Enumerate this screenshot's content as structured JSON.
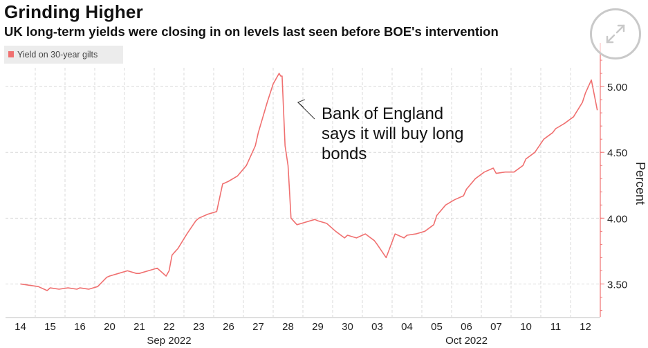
{
  "header": {
    "title": "Grinding Higher",
    "subtitle": "UK long-term yields were closing in on levels last seen before BOE's intervention"
  },
  "chart_data": {
    "type": "line",
    "title": "Grinding Higher",
    "subtitle": "UK long-term yields were closing in on levels last seen before BOE's intervention",
    "ylabel": "Percent",
    "ylim": [
      3.25,
      5.3
    ],
    "yticks": [
      3.5,
      4.0,
      4.5,
      5.0
    ],
    "ytick_labels": [
      "3.50",
      "4.00",
      "4.50",
      "5.00"
    ],
    "y_axis_side": "right",
    "grid": "dashed",
    "legend": {
      "position": "top-left"
    },
    "categories": [
      "14",
      "15",
      "16",
      "20",
      "21",
      "22",
      "23",
      "26",
      "27",
      "28",
      "29",
      "30",
      "03",
      "04",
      "05",
      "06",
      "07",
      "10",
      "11",
      "12"
    ],
    "month_labels": [
      {
        "label": "Sep 2022",
        "at_category": "22"
      },
      {
        "label": "Oct 2022",
        "at_category": "06"
      }
    ],
    "series": [
      {
        "name": "Yield on 30-year gilts",
        "color": "#f07070",
        "x": [
          0,
          0.3,
          0.6,
          0.9,
          1,
          1.3,
          1.6,
          1.9,
          2,
          2.3,
          2.6,
          2.9,
          3,
          3.3,
          3.6,
          3.9,
          4,
          4.3,
          4.6,
          4.9,
          5,
          5.1,
          5.3,
          5.6,
          5.9,
          6,
          6.3,
          6.6,
          6.8,
          6.9,
          7,
          7.3,
          7.6,
          7.9,
          8,
          8.3,
          8.5,
          8.7,
          8.75,
          8.8,
          8.9,
          9.0,
          9.05,
          9.1,
          9.3,
          9.6,
          9.9,
          10,
          10.3,
          10.6,
          10.9,
          11,
          11.3,
          11.6,
          11.9,
          12,
          12.3,
          12.6,
          12.9,
          13,
          13.3,
          13.6,
          13.9,
          14,
          14.3,
          14.6,
          14.9,
          15,
          15.3,
          15.6,
          15.9,
          16,
          16.3,
          16.6,
          16.9,
          17,
          17.3,
          17.6,
          17.9,
          18,
          18.3,
          18.6,
          18.9,
          19,
          19.2,
          19.4
        ],
        "values": [
          3.5,
          3.49,
          3.48,
          3.45,
          3.47,
          3.46,
          3.47,
          3.46,
          3.47,
          3.46,
          3.48,
          3.55,
          3.56,
          3.58,
          3.6,
          3.58,
          3.58,
          3.6,
          3.62,
          3.56,
          3.6,
          3.72,
          3.77,
          3.88,
          3.98,
          4.0,
          4.03,
          4.05,
          4.26,
          4.27,
          4.28,
          4.32,
          4.4,
          4.55,
          4.65,
          4.88,
          5.02,
          5.1,
          5.08,
          5.08,
          4.55,
          4.4,
          4.2,
          4.0,
          3.95,
          3.97,
          3.99,
          3.98,
          3.96,
          3.9,
          3.85,
          3.87,
          3.85,
          3.88,
          3.83,
          3.8,
          3.7,
          3.88,
          3.85,
          3.87,
          3.88,
          3.9,
          3.95,
          4.02,
          4.1,
          4.14,
          4.17,
          4.22,
          4.3,
          4.35,
          4.38,
          4.34,
          4.35,
          4.35,
          4.4,
          4.45,
          4.5,
          4.6,
          4.65,
          4.68,
          4.72,
          4.77,
          4.88,
          4.95,
          5.05,
          4.82
        ]
      }
    ],
    "annotations": [
      {
        "text_lines": [
          "Bank of England",
          "says it will buy long",
          "bonds"
        ],
        "x": 9.1,
        "y": 4.88
      }
    ]
  },
  "ui": {
    "expand_icon": "expand-arrows-icon",
    "colors": {
      "line": "#f07070",
      "grid": "#d9d9d9",
      "axis": "#f07070",
      "text": "#111111"
    }
  }
}
